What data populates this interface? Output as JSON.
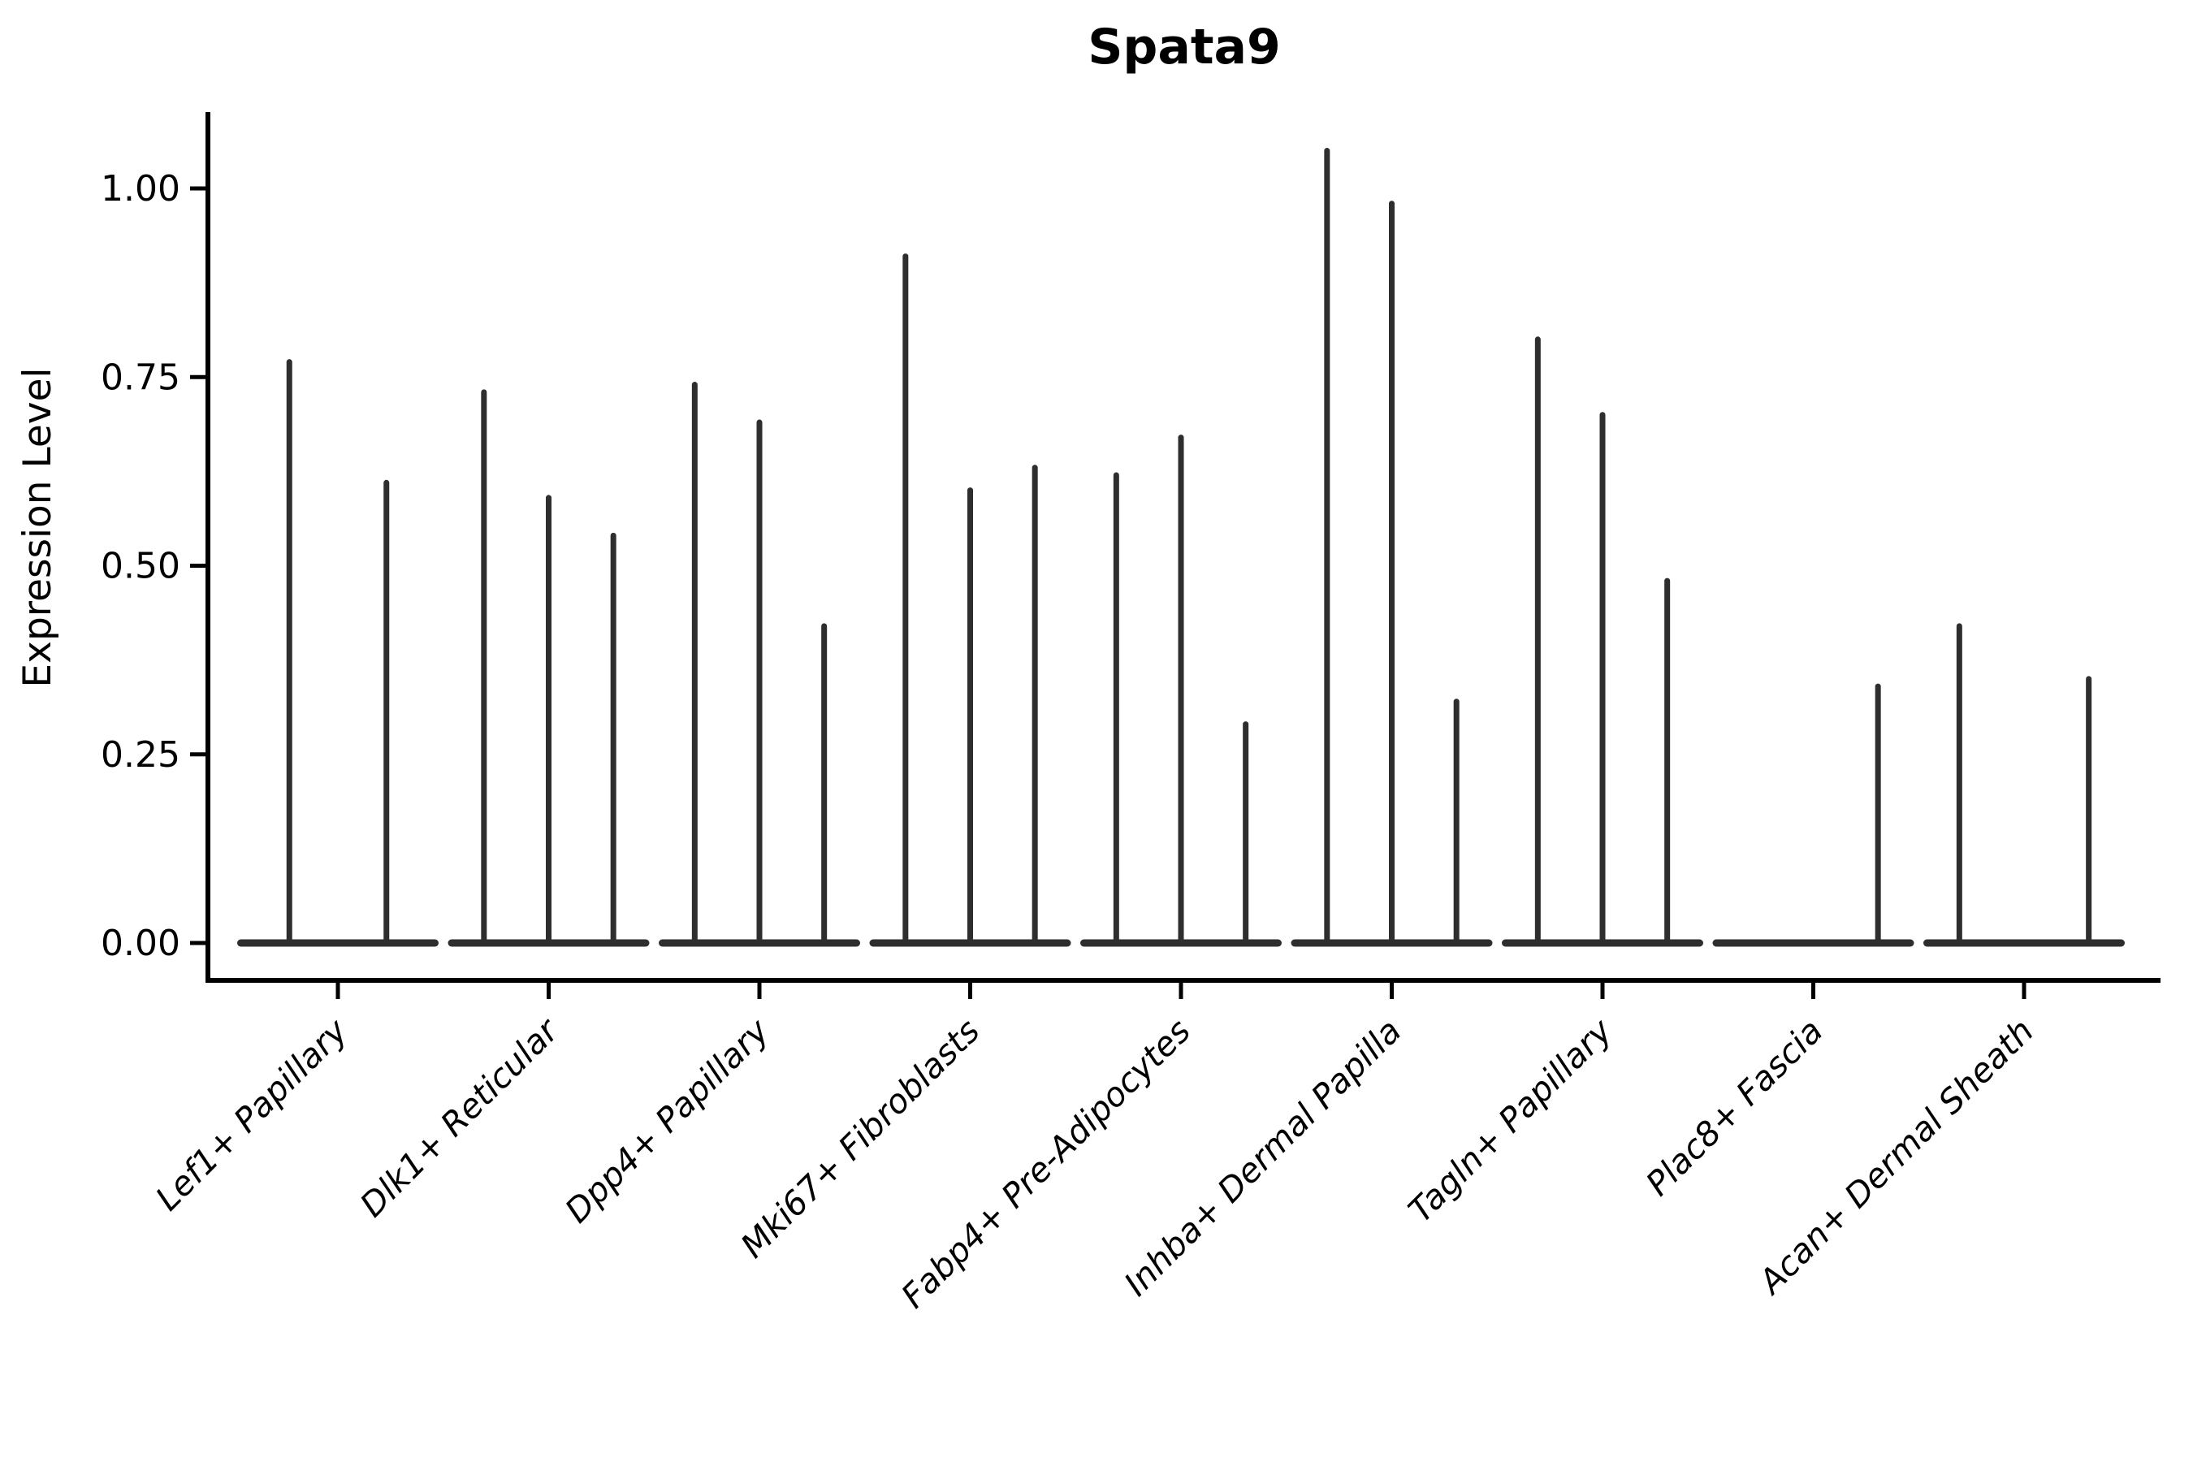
{
  "chart_data": {
    "type": "violin",
    "title": "Spata9",
    "xlabel": "",
    "ylabel": "Expression Level",
    "grid": false,
    "legend": "none",
    "ylim": [
      0,
      1.1
    ],
    "yticks": [
      {
        "value": 0.0,
        "label": "0.00"
      },
      {
        "value": 0.25,
        "label": "0.25"
      },
      {
        "value": 0.5,
        "label": "0.50"
      },
      {
        "value": 0.75,
        "label": "0.75"
      },
      {
        "value": 1.0,
        "label": "1.00"
      }
    ],
    "categories": [
      "Lef1+ Papillary",
      "Dlk1+ Reticular",
      "Dpp4+ Papillary",
      "Mki67+ Fibroblasts",
      "Fabp4+ Pre-Adipocytes",
      "Inhba+ Dermal Papilla",
      "Tagln+ Papillary",
      "Plac8+ Fascia",
      "Acan+ Dermal Sheath"
    ],
    "violin_note": "Each category holds 2-3 very thin violins; value = max expression spike height, 0 = flat violin with no spike",
    "violin_max_values": [
      [
        0.77,
        0.61
      ],
      [
        0.73,
        0.59,
        0.54
      ],
      [
        0.74,
        0.69,
        0.42
      ],
      [
        0.91,
        0.6,
        0.63
      ],
      [
        0.62,
        0.67,
        0.29
      ],
      [
        1.05,
        0.98,
        0.32
      ],
      [
        0.8,
        0.7,
        0.48
      ],
      [
        0.0,
        0.0,
        0.34
      ],
      [
        0.42,
        0.0,
        0.35
      ]
    ],
    "colors": {
      "violin_stroke": "#2e2e2e",
      "axis": "#000000",
      "text": "#000000",
      "background": "#ffffff"
    }
  }
}
